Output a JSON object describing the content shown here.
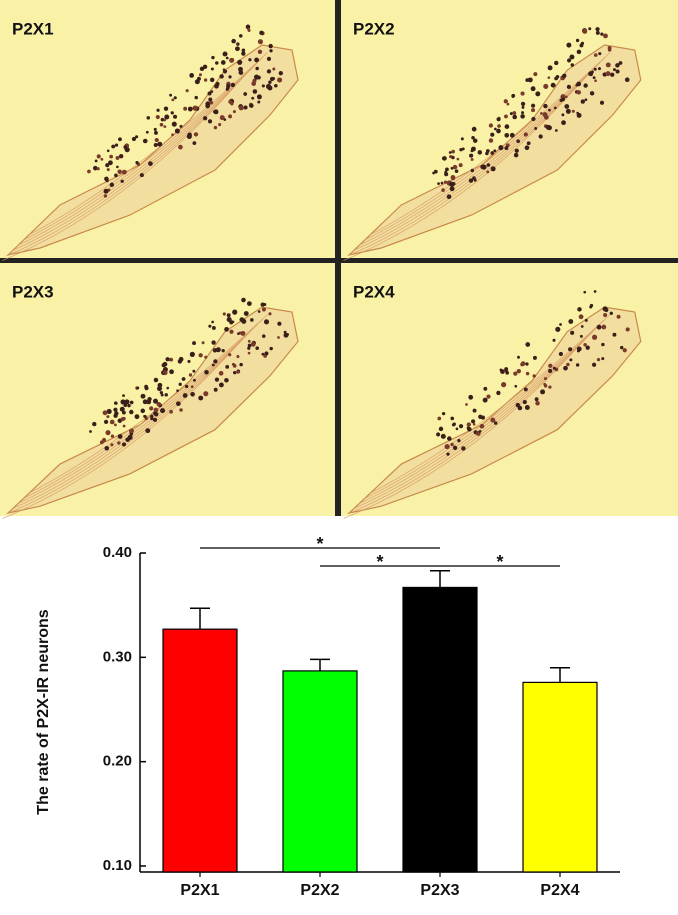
{
  "panels": [
    {
      "label": "P2X1"
    },
    {
      "label": "P2X2"
    },
    {
      "label": "P2X3"
    },
    {
      "label": "P2X4"
    }
  ],
  "chart_data": {
    "type": "bar",
    "ylabel": "The rate of P2X-IR neurons",
    "categories": [
      "P2X1",
      "P2X2",
      "P2X3",
      "P2X4"
    ],
    "values": [
      0.327,
      0.287,
      0.367,
      0.276
    ],
    "errors": [
      0.02,
      0.011,
      0.016,
      0.014
    ],
    "colors": [
      "#ff0000",
      "#00ff00",
      "#000000",
      "#ffff00"
    ],
    "ylim": [
      0.1,
      0.4
    ],
    "yticks": [
      {
        "value": 0.1,
        "label": "0.10"
      },
      {
        "value": 0.2,
        "label": "0.20"
      },
      {
        "value": 0.3,
        "label": "0.30"
      },
      {
        "value": 0.4,
        "label": "0.40"
      }
    ],
    "annotations": [
      {
        "label": "*",
        "from": "P2X1",
        "to": "P2X3"
      },
      {
        "label": "*",
        "from": "P2X2",
        "to": "P2X3"
      },
      {
        "label": "*",
        "from": "P2X3",
        "to": "P2X4"
      }
    ]
  }
}
